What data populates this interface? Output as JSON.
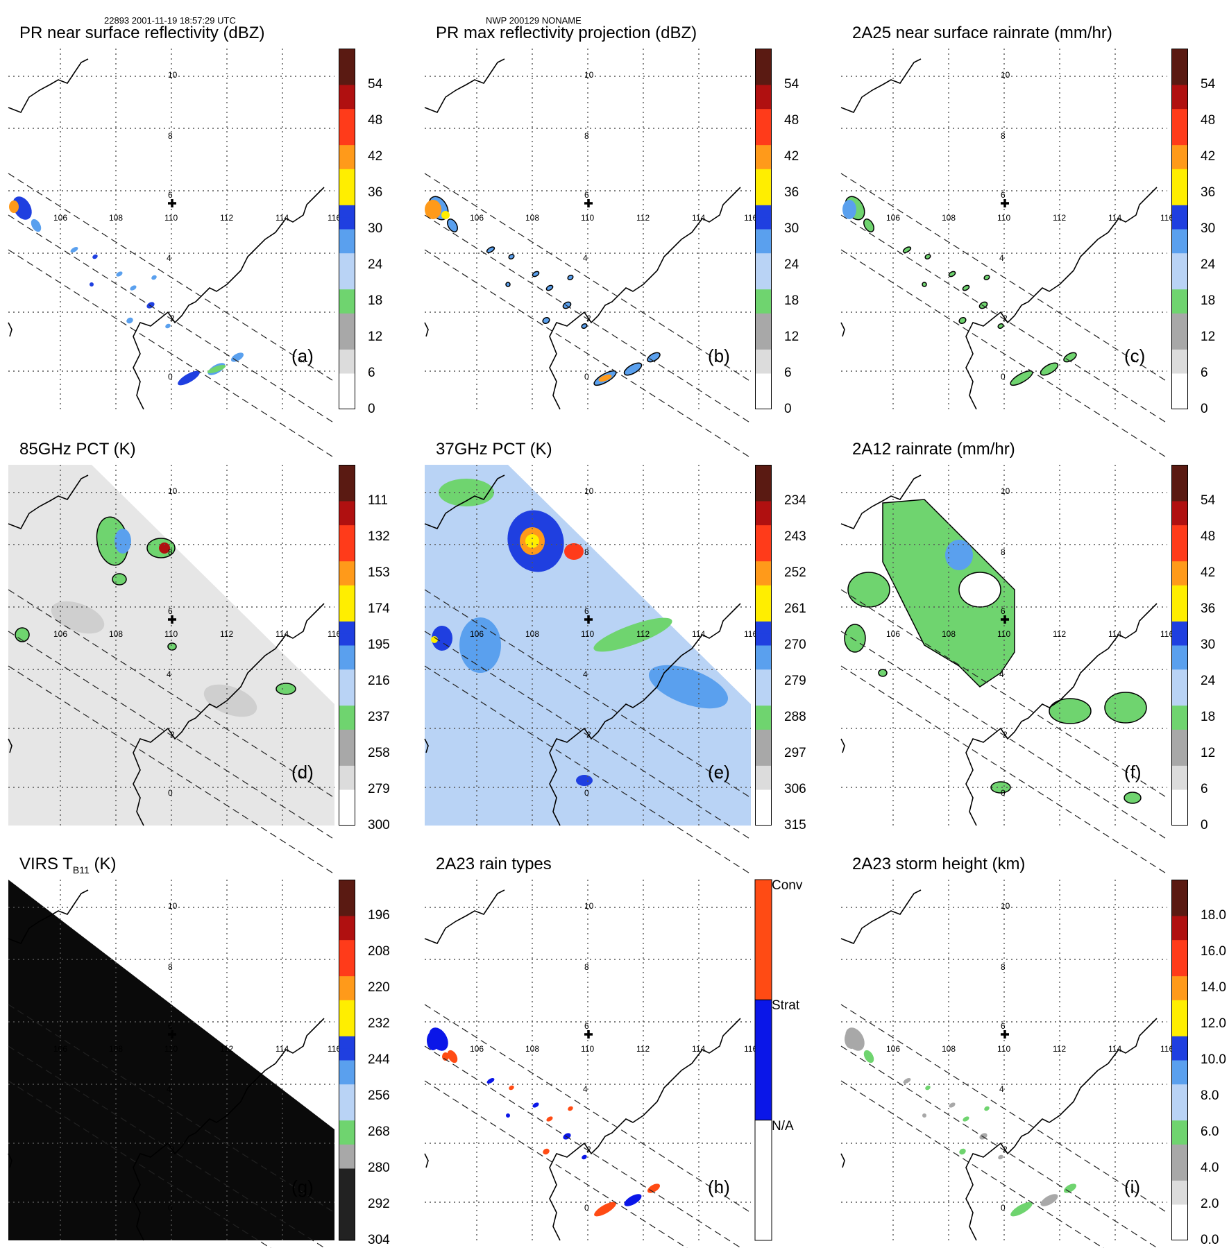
{
  "header": {
    "orbit_time": "22893 2001-11-19 18:57:29 UTC",
    "storm": "NWP 200129 NONAME"
  },
  "map_labels": {
    "lons": [
      "106",
      "108",
      "110",
      "112",
      "114",
      "116"
    ],
    "lats": [
      "10",
      "8",
      "6",
      "4",
      "2",
      "0"
    ]
  },
  "colors": {
    "white": "#ffffff",
    "lightgray": "#dcdcdc",
    "gray": "#a8a8a8",
    "green": "#6fd46f",
    "lightblue": "#b9d3f5",
    "midblue": "#5aa0ee",
    "blue": "#1f3fe0",
    "yellow": "#ffee00",
    "orange": "#ff9a1a",
    "red": "#ff3b1a",
    "darkred": "#b01010",
    "maroon": "#5a1a12",
    "conv": "#ff4b14",
    "strat": "#0a16e8",
    "na": "#ffffff"
  },
  "panels": [
    {
      "id": "a",
      "title": "PR near surface reflectivity (dBZ)",
      "label": "(a)",
      "ticks": [
        "54",
        "48",
        "42",
        "36",
        "30",
        "24",
        "18",
        "12",
        "6",
        "0"
      ]
    },
    {
      "id": "b",
      "title": "PR max reflectivity projection (dBZ)",
      "label": "(b)",
      "ticks": [
        "54",
        "48",
        "42",
        "36",
        "30",
        "24",
        "18",
        "12",
        "6",
        "0"
      ]
    },
    {
      "id": "c",
      "title": "2A25 near surface rainrate (mm/hr)",
      "label": "(c)",
      "ticks": [
        "54",
        "48",
        "42",
        "36",
        "30",
        "24",
        "18",
        "12",
        "6",
        "0"
      ]
    },
    {
      "id": "d",
      "title": "85GHz PCT (K)",
      "label": "(d)",
      "ticks": [
        "111",
        "132",
        "153",
        "174",
        "195",
        "216",
        "237",
        "258",
        "279",
        "300"
      ]
    },
    {
      "id": "e",
      "title": "37GHz PCT (K)",
      "label": "(e)",
      "ticks": [
        "234",
        "243",
        "252",
        "261",
        "270",
        "279",
        "288",
        "297",
        "306",
        "315"
      ]
    },
    {
      "id": "f",
      "title": "2A12 rainrate (mm/hr)",
      "label": "(f)",
      "ticks": [
        "54",
        "48",
        "42",
        "36",
        "30",
        "24",
        "18",
        "12",
        "6",
        "0"
      ]
    },
    {
      "id": "g",
      "title": "VIRS T",
      "title_sub": "B11",
      "title_end": " (K)",
      "label": "(g)",
      "ticks": [
        "196",
        "208",
        "220",
        "232",
        "244",
        "256",
        "268",
        "280",
        "292",
        "304"
      ]
    },
    {
      "id": "h",
      "title": "2A23 rain types",
      "label": "(h)",
      "cats": [
        "Conv",
        "Strat",
        "N/A"
      ]
    },
    {
      "id": "i",
      "title": "2A23 storm height (km)",
      "label": "(i)",
      "ticks": [
        "18.0",
        "16.0",
        "14.0",
        "12.0",
        "10.0",
        "8.0",
        "6.0",
        "4.0",
        "2.0",
        "0.0"
      ]
    }
  ]
}
